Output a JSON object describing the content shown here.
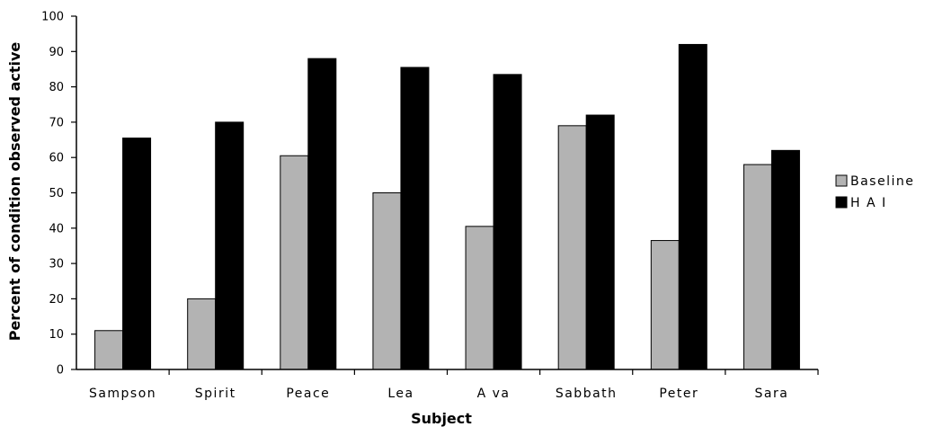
{
  "chart_data": {
    "type": "bar",
    "title": "",
    "xlabel": "Subject",
    "ylabel": "Percent of condition observed active",
    "ylim": [
      0,
      100
    ],
    "yticks": [
      0,
      10,
      20,
      30,
      40,
      50,
      60,
      70,
      80,
      90,
      100
    ],
    "categories": [
      "Sampson",
      "Spirit",
      "Peace",
      "Lea",
      "A va",
      "Sabbath",
      "Peter",
      "Sara"
    ],
    "series": [
      {
        "name": "Baseline",
        "color": "#b3b3b3",
        "values": [
          11,
          20,
          60.5,
          50,
          40.5,
          69,
          36.5,
          58
        ]
      },
      {
        "name": "H A I",
        "color": "#000000",
        "values": [
          65.5,
          70,
          88,
          85.5,
          83.5,
          72,
          92,
          62
        ]
      }
    ],
    "legend": "right",
    "grid": false
  }
}
